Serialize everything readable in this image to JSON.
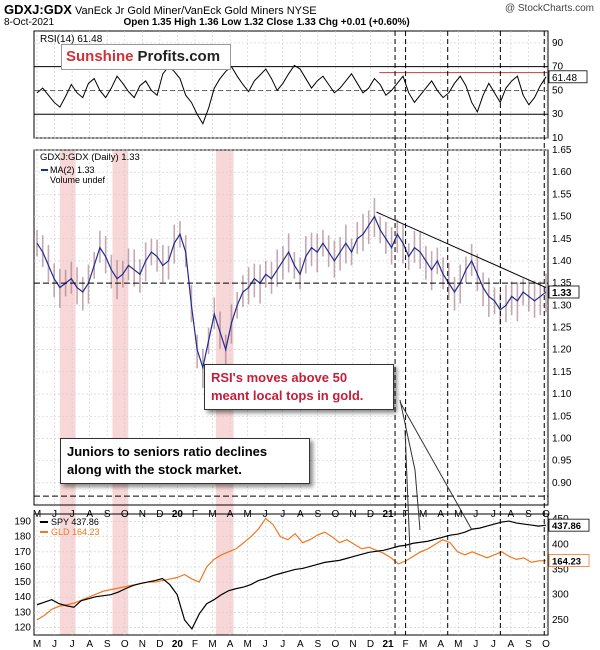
{
  "header": {
    "symbol": "GDXJ:GDX",
    "description": "VanEck Jr Gold Miner/VanEck Gold Miners NYSE",
    "date": "8-Oct-2021",
    "ohlc": "Open 1.35  High 1.36  Low 1.32  Close 1.33  Chg +0.01 (+0.60%)",
    "watermark": "@ StockCharts.com"
  },
  "logo": {
    "part1": "Sunshine",
    "part2": "Profits.com"
  },
  "annotations": {
    "rsi_note_line1": "RSI's moves above 50",
    "rsi_note_line2": "meant local tops in gold.",
    "ratio_note_line1": "Juniors to seniors ratio declines",
    "ratio_note_line2": "along with the stock market."
  },
  "colors": {
    "rsi_line": "#000000",
    "ratio_line": "#1f2d8f",
    "ratio_bars": "#a07080",
    "spy_line": "#000000",
    "gld_line": "#f07820",
    "highlight": "#f4c6c8"
  },
  "chart_data": [
    {
      "type": "line",
      "panel": "rsi",
      "legend": "RSI(14) 61.48",
      "last_value_label": "61.48",
      "ylim": [
        10,
        100
      ],
      "yticks": [
        "90",
        "70",
        "50",
        "30",
        "10"
      ],
      "levels": [
        70,
        50,
        30
      ],
      "x_ticks": [
        "M",
        "J",
        "J",
        "A",
        "S",
        "O",
        "N",
        "D",
        "20",
        "F",
        "M",
        "A",
        "M",
        "J",
        "J",
        "A",
        "S",
        "O",
        "N",
        "D",
        "21",
        "F",
        "M",
        "A",
        "M",
        "J",
        "J",
        "A",
        "S",
        "O"
      ],
      "values": [
        48,
        52,
        46,
        40,
        36,
        45,
        55,
        48,
        44,
        56,
        60,
        50,
        44,
        52,
        62,
        56,
        49,
        44,
        54,
        58,
        50,
        46,
        64,
        70,
        66,
        60,
        46,
        40,
        30,
        22,
        35,
        52,
        60,
        66,
        70,
        62,
        55,
        49,
        58,
        63,
        68,
        60,
        50,
        56,
        64,
        71,
        68,
        60,
        52,
        58,
        62,
        55,
        48,
        52,
        58,
        64,
        56,
        48,
        52,
        60,
        55,
        46,
        50,
        56,
        62,
        48,
        40,
        46,
        52,
        58,
        50,
        44,
        48,
        56,
        62,
        54,
        40,
        32,
        46,
        56,
        48,
        40,
        52,
        58,
        62,
        46,
        38,
        44,
        54,
        61.48
      ]
    },
    {
      "type": "line",
      "panel": "ratio",
      "legend_title": "GDXJ:GDX (Daily) 1.33",
      "legend_ma": "MA(2) 1.33",
      "legend_volume": "Volume undef",
      "last_value_label": "1.33",
      "ylim": [
        0.85,
        1.65
      ],
      "yticks": [
        "1.65",
        "1.60",
        "1.55",
        "1.50",
        "1.45",
        "1.40",
        "1.35",
        "1.30",
        "1.25",
        "1.20",
        "1.15",
        "1.10",
        "1.05",
        "1.00",
        "0.95",
        "0.90"
      ],
      "horizontal_line": 1.35,
      "bottom_line": 0.87,
      "trendline": [
        [
          0.667,
          1.51
        ],
        [
          1.0,
          1.34
        ]
      ],
      "values": [
        1.44,
        1.42,
        1.39,
        1.36,
        1.34,
        1.35,
        1.36,
        1.34,
        1.33,
        1.35,
        1.39,
        1.43,
        1.41,
        1.38,
        1.36,
        1.37,
        1.39,
        1.38,
        1.37,
        1.4,
        1.42,
        1.41,
        1.39,
        1.4,
        1.44,
        1.46,
        1.42,
        1.3,
        1.2,
        1.16,
        1.22,
        1.28,
        1.24,
        1.2,
        1.26,
        1.3,
        1.33,
        1.34,
        1.36,
        1.35,
        1.37,
        1.36,
        1.38,
        1.4,
        1.42,
        1.39,
        1.37,
        1.41,
        1.43,
        1.42,
        1.44,
        1.42,
        1.4,
        1.42,
        1.44,
        1.42,
        1.45,
        1.46,
        1.48,
        1.5,
        1.47,
        1.45,
        1.43,
        1.46,
        1.44,
        1.41,
        1.43,
        1.42,
        1.4,
        1.38,
        1.4,
        1.37,
        1.35,
        1.33,
        1.35,
        1.38,
        1.4,
        1.37,
        1.34,
        1.32,
        1.31,
        1.29,
        1.3,
        1.32,
        1.31,
        1.33,
        1.32,
        1.31,
        1.32,
        1.33
      ]
    },
    {
      "type": "line",
      "panel": "spy_gld",
      "legend_spy": "SPY 437.86",
      "legend_gld": "GLD 164.23",
      "spy_last_label": "437.86",
      "gld_last_label": "164.23",
      "left_ylim": [
        115,
        195
      ],
      "left_yticks": [
        "190",
        "180",
        "170",
        "160",
        "150",
        "140",
        "130",
        "120"
      ],
      "right_ylim": [
        220,
        460
      ],
      "right_yticks": [
        "450",
        "400",
        "350",
        "300",
        "250"
      ],
      "spy_values": [
        280,
        285,
        290,
        282,
        278,
        275,
        288,
        292,
        296,
        298,
        300,
        305,
        312,
        318,
        322,
        325,
        328,
        332,
        320,
        300,
        250,
        232,
        262,
        282,
        290,
        300,
        308,
        312,
        315,
        320,
        328,
        332,
        338,
        342,
        346,
        350,
        352,
        356,
        360,
        364,
        366,
        368,
        372,
        376,
        380,
        384,
        386,
        388,
        392,
        396,
        398,
        402,
        404,
        406,
        410,
        414,
        418,
        420,
        424,
        430,
        432,
        436,
        440,
        444,
        446,
        442,
        440,
        438,
        436,
        437.86
      ],
      "gld_values": [
        125,
        128,
        132,
        134,
        135,
        136,
        138,
        140,
        142,
        144,
        145,
        146,
        147,
        148,
        149,
        150,
        150,
        151,
        152,
        153,
        155,
        152,
        150,
        160,
        165,
        168,
        170,
        172,
        176,
        180,
        185,
        192,
        188,
        180,
        178,
        182,
        176,
        178,
        181,
        183,
        180,
        176,
        178,
        175,
        172,
        173,
        171,
        169,
        166,
        162,
        164,
        167,
        170,
        172,
        175,
        178,
        176,
        170,
        168,
        170,
        168,
        166,
        168,
        170,
        167,
        165,
        166,
        163,
        164,
        164.23
      ]
    }
  ]
}
